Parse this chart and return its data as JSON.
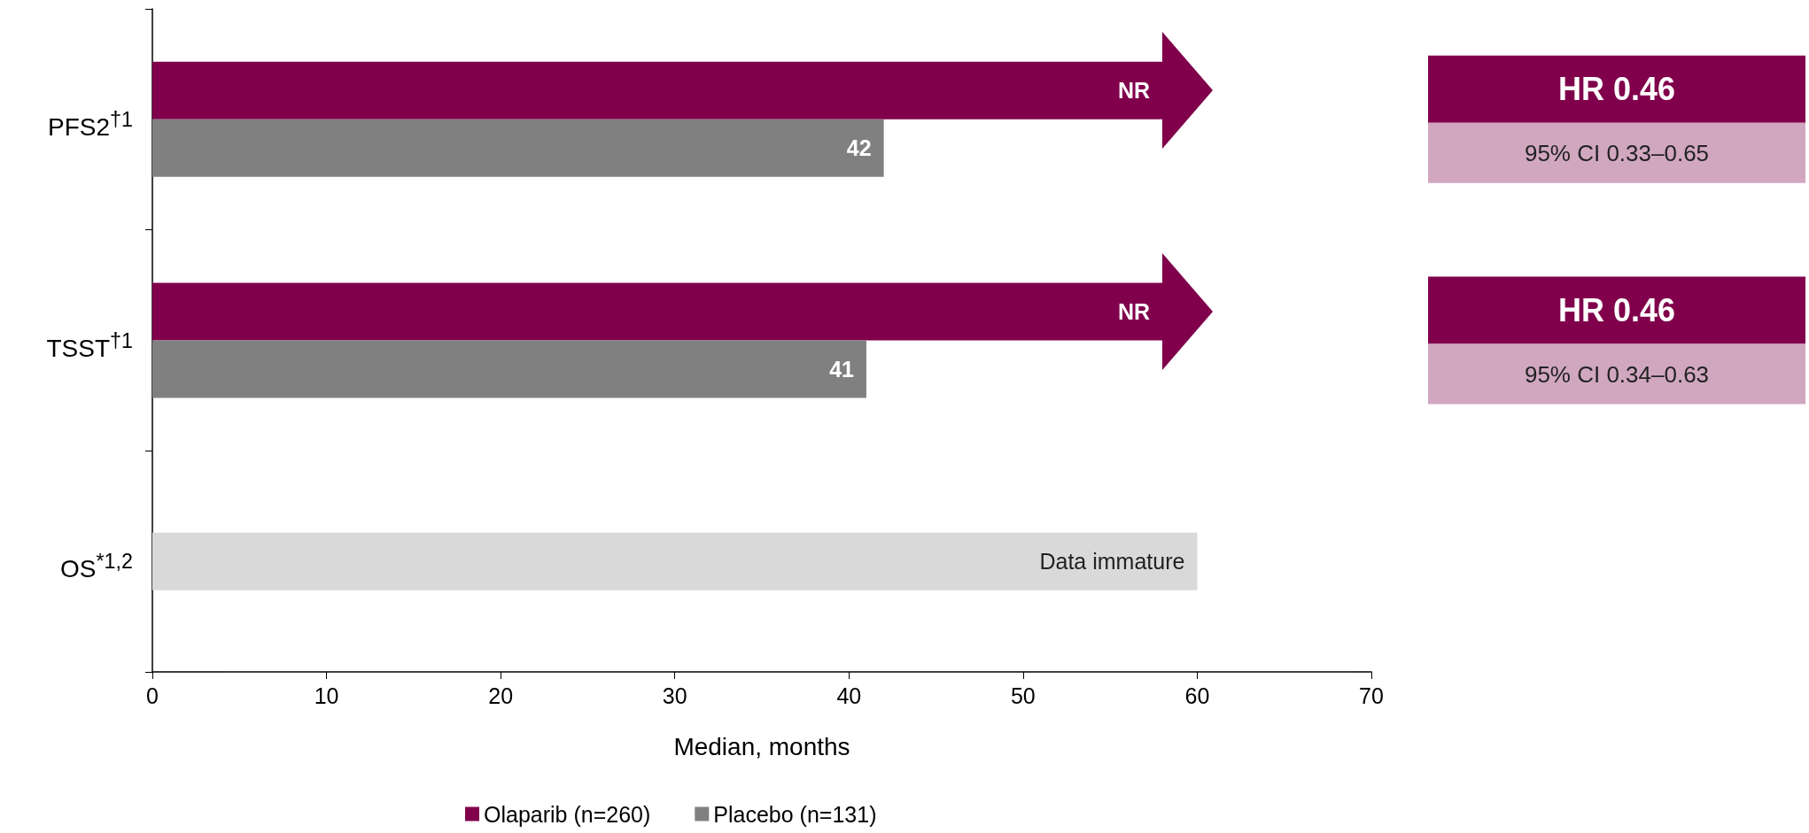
{
  "chart_data": {
    "type": "bar",
    "orientation": "horizontal",
    "categories": [
      "PFS2$^{†1}$",
      "TSST$^{†1}$",
      "OS$^{*1,2}$"
    ],
    "series": [
      {
        "name": "Olaparib (n=260)",
        "color": "#80004c",
        "values": [
          58,
          58,
          null
        ],
        "value_labels": [
          "NR",
          "NR",
          null
        ]
      },
      {
        "name": "Placebo (n=131)",
        "color": "#808080",
        "values": [
          42,
          41,
          null
        ],
        "value_labels": [
          "42",
          "41",
          null
        ]
      },
      {
        "color": "#d9d9d9",
        "values": [
          null,
          null,
          60
        ],
        "value_labels": [
          null,
          null,
          "Data immature"
        ]
      }
    ],
    "xlim": [
      0,
      70
    ],
    "xticks": [
      0,
      10,
      20,
      30,
      40,
      50,
      60,
      70
    ],
    "xlabel": "Median, months",
    "legend": "bottom",
    "grid": false,
    "annotations": [
      "HR 0.46",
      "95% CI 0.33–0.65",
      "HR 0.46",
      "95% CI 0.34–0.63"
    ]
  }
}
